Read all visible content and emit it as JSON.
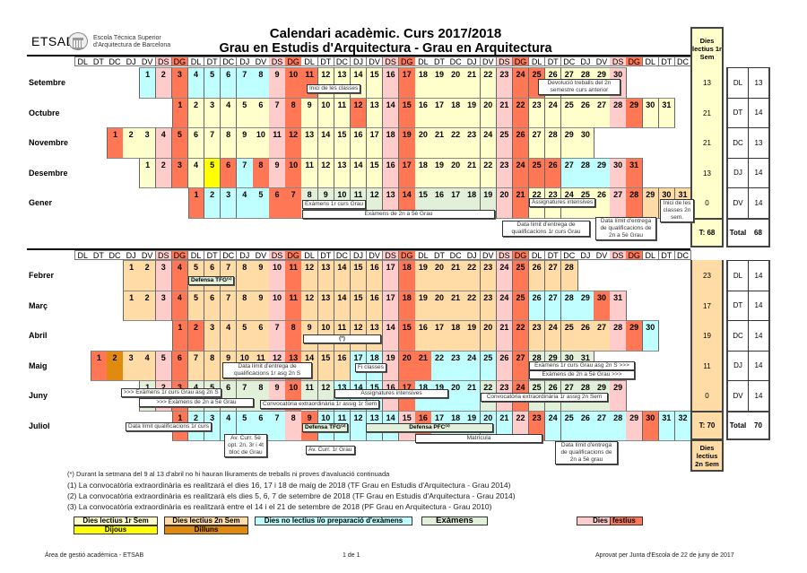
{
  "header": {
    "logo_text": "ETSAB",
    "school_line1": "Escola Tècnica Superior",
    "school_line2": "d'Arquitectura de Barcelona",
    "title": "Calendari acadèmic. Curs 2017/2018",
    "subtitle": "Grau en Estudis d'Arquitectura - Grau en Arquitectura"
  },
  "weekdays": [
    "DL",
    "DT",
    "DC",
    "DJ",
    "DV",
    "DS",
    "DG"
  ],
  "colors": {
    "Y": "#ffffcc",
    "O": "#ffdca5",
    "C": "#c0ffff",
    "G": "#e2efd9",
    "P": "#ffcccc",
    "R": "#ff7755",
    "D": "#ffff00",
    "L": "#e08a10"
  },
  "semester1": {
    "months": [
      {
        "name": "Setembre",
        "start_col": 4,
        "types": "CPRCCCCCPRRYYYYPRYYYYYPRRYYYYP"
      },
      {
        "name": "Octubre",
        "start_col": 6,
        "types": "RYYYYYPRYYYRYPRYYYYYPRYYYYYPRYY"
      },
      {
        "name": "Novembre",
        "start_col": 2,
        "types": "RYYPRYYYYYPRYYYYYPRYYYYYPRYYYY"
      },
      {
        "name": "Desembre",
        "start_col": 4,
        "types": "YPRYDRCRPRYYYYYPRYYYYYPRRRCCCPR"
      },
      {
        "name": "Gener",
        "start_col": 7,
        "types": "RCCCCRRGGGGGPRGGGGGPRYYYYYPROOO"
      }
    ],
    "side_header": "Dies lectius 1r Sem",
    "side_values": [
      "13",
      "21",
      "21",
      "13",
      "0"
    ],
    "side_total": "T: 68",
    "weekday_counts": [
      [
        "DL",
        "13"
      ],
      [
        "DT",
        "14"
      ],
      [
        "DC",
        "13"
      ],
      [
        "DJ",
        "14"
      ],
      [
        "DV",
        "14"
      ]
    ],
    "total_label": "Total",
    "total_value": "68"
  },
  "semester2": {
    "months": [
      {
        "name": "Febrer",
        "start_col": 3,
        "types": "OOPROOOOOPROOOOOPROOOOOPROOO"
      },
      {
        "name": "Març",
        "start_col": 3,
        "types": "OOPROOOOOPROOOOOPROOOOOPRCCCCRP"
      },
      {
        "name": "Abril",
        "start_col": 6,
        "types": "RROOOOPROOOOOPROOOOOPROOOOOPRC"
      },
      {
        "name": "Maig",
        "start_col": 1,
        "types": "RLOOPROOOOOPROOOCCPRRCCCCPRGGGG"
      },
      {
        "name": "Juny",
        "start_col": 4,
        "types": "GPRGGGGGPRGGCCCPRCCCCGPRGGGGGP",
        "label_overrides": {
          "30": "29"
        }
      },
      {
        "name": "Juliol",
        "start_col": 6,
        "types": "RCCCCCCPRCCCCCPRCCCCCPRCCCCCPRCC"
      }
    ],
    "side_values": [
      "23",
      "17",
      "19",
      "11",
      "0"
    ],
    "side_total": "T: 70",
    "side_footer": "Dies lectius 2n Sem",
    "weekday_counts": [
      [
        "DL",
        "14"
      ],
      [
        "DT",
        "14"
      ],
      [
        "DC",
        "14"
      ],
      [
        "DJ",
        "14"
      ],
      [
        "DV",
        "14"
      ]
    ],
    "total_label": "Total",
    "total_value": "70"
  },
  "annotations": {
    "inici_classes": "Inici de les classes",
    "devolucio": "Devolució treballs del 2n semestre curs anterior",
    "examens_1r": "Exàmens 1r curs Grau",
    "examens_2n5e": "Exàmens de 2n a 5è Grau",
    "assig_intensives_1": "Assignatures intensives",
    "limit_1r_curs": "Data límit d'entrega de qualificacions 1r curs Grau",
    "limit_2n5e": "Data límit d'entrega de qualificacions de 2n a 5è Grau",
    "inici_2n_sem": "Inici de les classes 2n sem.",
    "defensa_tfg1": "Defensa TFG⁽¹⁾",
    "asterisk": "(*)",
    "limit_1r_asg_2n": "Data límit d'entrega de qualificacions 1r asg 2n S",
    "fi_classes": "Fi classes",
    "examens_1r_2n_a": "Exàmens 1r curs Grau asg 2n S >>>",
    "examens_2n5e_a": "Exàmens de 2n a 5è Grau >>>",
    "examens_1r_2n_b": ">>> Exàmens 1r curs Grau asg 2n S",
    "examens_2n5e_b": ">>> Exàmens de 2n a 5è Grau",
    "assig_intensives_2": "Assignatures intensives",
    "conv_1r_sem": "Convocatòria extraordinària 1r assig 1r Sem",
    "conv_2n_sem": "Convocatòria extraordinària 1r assig 2n Sem",
    "limit_qual_1r": "Data límit qualificacions 1r curs",
    "av_curr_5e": "Av. Curr. 5è opt. 2n, 3r i 4t bloc de Grau",
    "defensa_tfg2": "Defensa TFG⁽²⁾",
    "defensa_pfc3": "Defensa PFC⁽³⁾",
    "matricula": "Matrícula",
    "av_curr_1r": "Av. Curr. 1r Grau",
    "limit_2n5e_grau": "Data límit d'entrega de qualificacions de 2n a 5è grau"
  },
  "footnotes": [
    "(*) Durant la setmana del 9 al 13 d'abril no hi hauran lliuraments de treballs ni proves d'avaluació continuada",
    "(1) La convocatòria extraordinària es realitzarà el dies 16, 17 i 18 de maig de 2018 (TF Grau en Estudis d'Arquitectura - Grau 2014)",
    "(2) La convocatòria extraordinària es realitzarà els dies 5, 6, 7 de setembre de 2018 (TF Grau en Estudis d'Arquitectura - Grau 2014)",
    "(3) La convocatòria extraordinària es realitzarà entre el 14 i el 21 de setembre de 2018 (PF Grau en Arquitectura - Grau 2010)"
  ],
  "legend": {
    "lectius_1r": "Dies lectius 1r Sem",
    "dijous": "Dijous",
    "lectius_2n": "Dies lectius 2n Sem",
    "dilluns": "Dilluns",
    "no_lectius": "Dies no lectius i/o preparació d'exàmens",
    "examens": "Exàmens",
    "dies": "Dies",
    "festius": "festius"
  },
  "footer": {
    "left": "Àrea de gestió acadèmica - ETSAB",
    "center": "1 de 1",
    "right": "Aprovat per Junta d'Escola de 22 de juny de 2017"
  }
}
